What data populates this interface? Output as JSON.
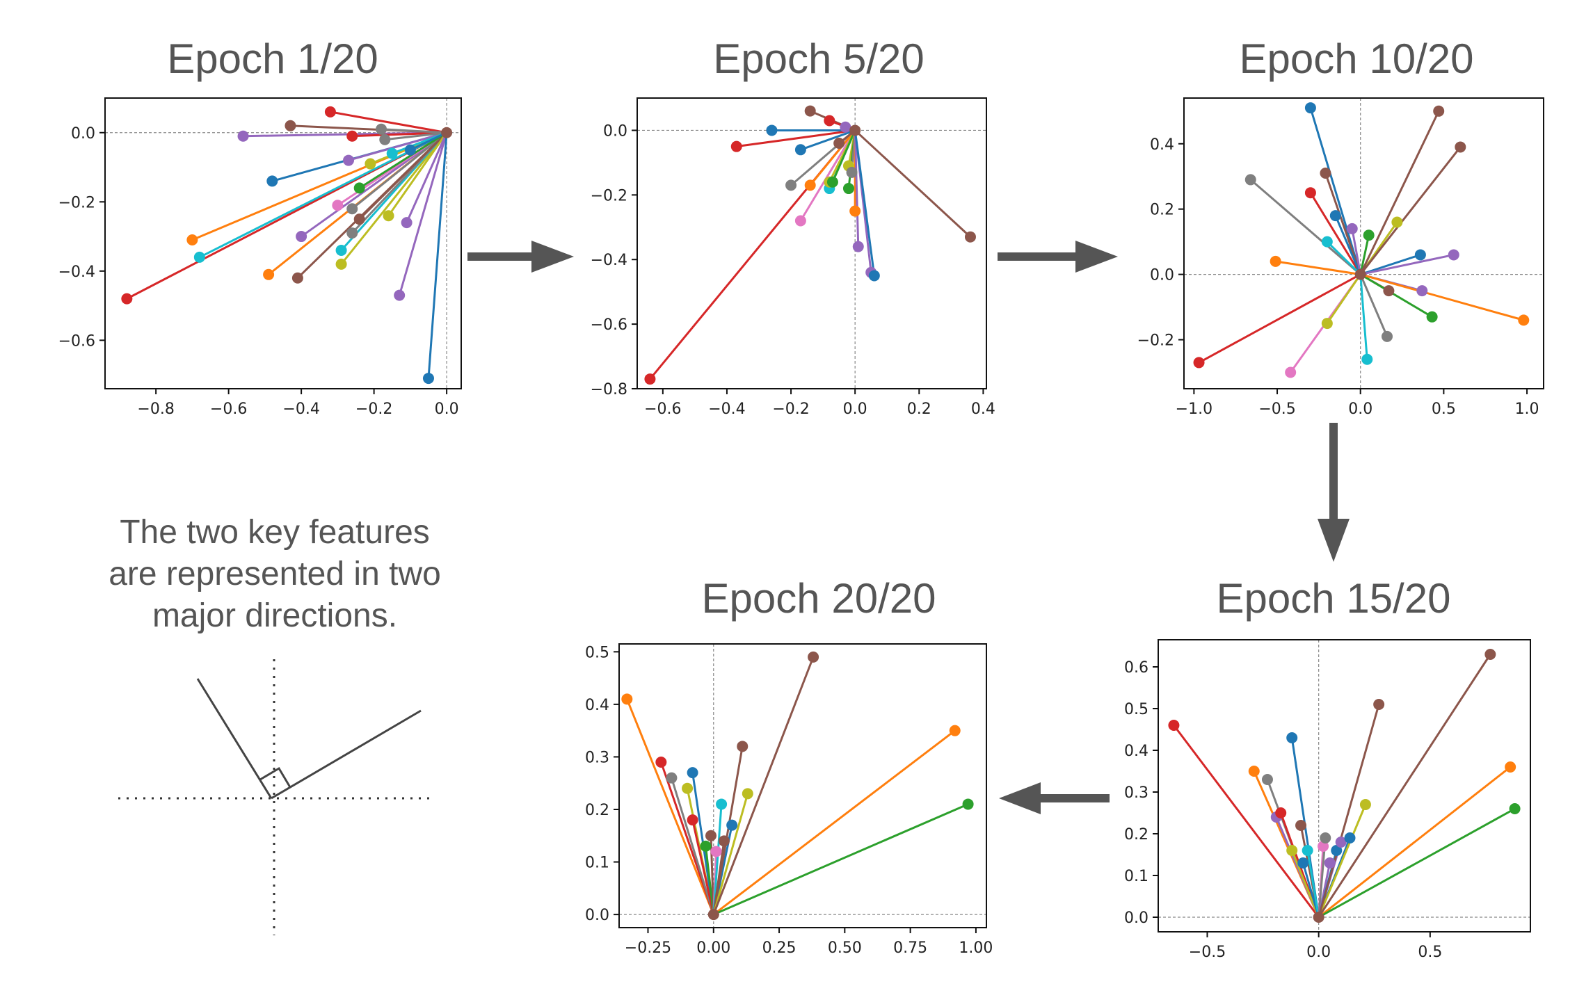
{
  "panels": [
    {
      "title": "Epoch 1/20"
    },
    {
      "title": "Epoch 5/20"
    },
    {
      "title": "Epoch 10/20"
    },
    {
      "title": "Epoch 15/20"
    },
    {
      "title": "Epoch 20/20"
    }
  ],
  "caption": {
    "line1": "The two key features",
    "line2": "are represented in two",
    "line3": "major directions."
  },
  "palette": [
    "#1f77b4",
    "#ff7f0e",
    "#2ca02c",
    "#d62728",
    "#9467bd",
    "#8c564b",
    "#e377c2",
    "#7f7f7f",
    "#bcbd22",
    "#17becf"
  ],
  "arrow_color": "#555555",
  "chart_data": [
    {
      "type": "scatter",
      "title": "Epoch 1/20",
      "xlim": [
        -0.94,
        0.04
      ],
      "ylim": [
        -0.74,
        0.1
      ],
      "xticks": [
        "-0.8",
        "-0.6",
        "-0.4",
        "-0.2",
        "0.0"
      ],
      "xtick_values": [
        -0.8,
        -0.6,
        -0.4,
        -0.2,
        0.0
      ],
      "yticks": [
        "0.0",
        "-0.2",
        "-0.4",
        "-0.6"
      ],
      "ytick_values": [
        0.0,
        -0.2,
        -0.4,
        -0.6
      ],
      "origin": [
        0,
        0
      ],
      "points": [
        {
          "x": -0.88,
          "y": -0.48,
          "c": 3
        },
        {
          "x": -0.7,
          "y": -0.31,
          "c": 1
        },
        {
          "x": -0.68,
          "y": -0.36,
          "c": 9
        },
        {
          "x": -0.56,
          "y": -0.01,
          "c": 4
        },
        {
          "x": -0.49,
          "y": -0.41,
          "c": 1
        },
        {
          "x": -0.48,
          "y": -0.14,
          "c": 0
        },
        {
          "x": -0.43,
          "y": 0.02,
          "c": 5
        },
        {
          "x": -0.41,
          "y": -0.42,
          "c": 5
        },
        {
          "x": -0.4,
          "y": -0.3,
          "c": 4
        },
        {
          "x": -0.32,
          "y": 0.06,
          "c": 3
        },
        {
          "x": -0.3,
          "y": -0.21,
          "c": 6
        },
        {
          "x": -0.29,
          "y": -0.38,
          "c": 8
        },
        {
          "x": -0.29,
          "y": -0.34,
          "c": 9
        },
        {
          "x": -0.27,
          "y": -0.08,
          "c": 4
        },
        {
          "x": -0.26,
          "y": -0.29,
          "c": 7
        },
        {
          "x": -0.26,
          "y": -0.22,
          "c": 7
        },
        {
          "x": -0.26,
          "y": -0.01,
          "c": 3
        },
        {
          "x": -0.24,
          "y": -0.25,
          "c": 5
        },
        {
          "x": -0.24,
          "y": -0.16,
          "c": 2
        },
        {
          "x": -0.21,
          "y": -0.09,
          "c": 8
        },
        {
          "x": -0.18,
          "y": 0.01,
          "c": 7
        },
        {
          "x": -0.17,
          "y": -0.02,
          "c": 7
        },
        {
          "x": -0.16,
          "y": -0.24,
          "c": 8
        },
        {
          "x": -0.13,
          "y": -0.47,
          "c": 4
        },
        {
          "x": -0.11,
          "y": -0.26,
          "c": 4
        },
        {
          "x": -0.05,
          "y": -0.71,
          "c": 0
        },
        {
          "x": -0.15,
          "y": -0.06,
          "c": 9
        },
        {
          "x": -0.1,
          "y": -0.05,
          "c": 0
        }
      ]
    },
    {
      "type": "scatter",
      "title": "Epoch 5/20",
      "xlim": [
        -0.68,
        0.41
      ],
      "ylim": [
        -0.8,
        0.1
      ],
      "xticks": [
        "-0.6",
        "-0.4",
        "-0.2",
        "0.0",
        "0.2",
        "0.4"
      ],
      "xtick_values": [
        -0.6,
        -0.4,
        -0.2,
        0.0,
        0.2,
        0.4
      ],
      "yticks": [
        "0.0",
        "-0.2",
        "-0.4",
        "-0.6",
        "-0.8"
      ],
      "ytick_values": [
        0.0,
        -0.2,
        -0.4,
        -0.6,
        -0.8
      ],
      "origin": [
        0,
        0
      ],
      "points": [
        {
          "x": -0.64,
          "y": -0.77,
          "c": 3
        },
        {
          "x": -0.37,
          "y": -0.05,
          "c": 3
        },
        {
          "x": -0.26,
          "y": 0.0,
          "c": 0
        },
        {
          "x": -0.2,
          "y": -0.17,
          "c": 7
        },
        {
          "x": -0.17,
          "y": -0.28,
          "c": 6
        },
        {
          "x": -0.17,
          "y": -0.06,
          "c": 0
        },
        {
          "x": -0.14,
          "y": 0.06,
          "c": 5
        },
        {
          "x": -0.14,
          "y": -0.17,
          "c": 1
        },
        {
          "x": -0.08,
          "y": -0.18,
          "c": 9
        },
        {
          "x": -0.08,
          "y": 0.03,
          "c": 3
        },
        {
          "x": -0.08,
          "y": -0.16,
          "c": 8
        },
        {
          "x": -0.07,
          "y": -0.16,
          "c": 2
        },
        {
          "x": -0.05,
          "y": -0.04,
          "c": 5
        },
        {
          "x": -0.03,
          "y": 0.01,
          "c": 4
        },
        {
          "x": -0.02,
          "y": -0.11,
          "c": 8
        },
        {
          "x": -0.02,
          "y": -0.18,
          "c": 2
        },
        {
          "x": -0.01,
          "y": -0.13,
          "c": 7
        },
        {
          "x": 0.0,
          "y": -0.25,
          "c": 1
        },
        {
          "x": 0.01,
          "y": -0.36,
          "c": 4
        },
        {
          "x": 0.05,
          "y": -0.44,
          "c": 4
        },
        {
          "x": 0.06,
          "y": -0.45,
          "c": 0
        },
        {
          "x": 0.36,
          "y": -0.33,
          "c": 5
        }
      ]
    },
    {
      "type": "scatter",
      "title": "Epoch 10/20",
      "xlim": [
        -1.06,
        1.1
      ],
      "ylim": [
        -0.35,
        0.54
      ],
      "xticks": [
        "-1.0",
        "-0.5",
        "0.0",
        "0.5",
        "1.0"
      ],
      "xtick_values": [
        -1.0,
        -0.5,
        0.0,
        0.5,
        1.0
      ],
      "yticks": [
        "0.4",
        "0.2",
        "0.0",
        "-0.2"
      ],
      "ytick_values": [
        0.4,
        0.2,
        0.0,
        -0.2
      ],
      "origin": [
        0,
        0
      ],
      "points": [
        {
          "x": -0.97,
          "y": -0.27,
          "c": 3
        },
        {
          "x": -0.66,
          "y": 0.29,
          "c": 7
        },
        {
          "x": -0.51,
          "y": 0.04,
          "c": 1
        },
        {
          "x": -0.42,
          "y": -0.3,
          "c": 6
        },
        {
          "x": -0.3,
          "y": 0.51,
          "c": 0
        },
        {
          "x": -0.3,
          "y": 0.25,
          "c": 3
        },
        {
          "x": -0.21,
          "y": 0.31,
          "c": 5
        },
        {
          "x": -0.2,
          "y": -0.15,
          "c": 8
        },
        {
          "x": -0.2,
          "y": 0.1,
          "c": 9
        },
        {
          "x": -0.15,
          "y": 0.18,
          "c": 0
        },
        {
          "x": -0.05,
          "y": 0.14,
          "c": 4
        },
        {
          "x": 0.04,
          "y": -0.26,
          "c": 9
        },
        {
          "x": 0.05,
          "y": 0.12,
          "c": 2
        },
        {
          "x": 0.16,
          "y": -0.19,
          "c": 7
        },
        {
          "x": 0.17,
          "y": -0.05,
          "c": 5
        },
        {
          "x": 0.22,
          "y": 0.16,
          "c": 8
        },
        {
          "x": 0.36,
          "y": 0.06,
          "c": 0
        },
        {
          "x": 0.37,
          "y": -0.05,
          "c": 4
        },
        {
          "x": 0.43,
          "y": -0.13,
          "c": 2
        },
        {
          "x": 0.47,
          "y": 0.5,
          "c": 5
        },
        {
          "x": 0.56,
          "y": 0.06,
          "c": 4
        },
        {
          "x": 0.6,
          "y": 0.39,
          "c": 5
        },
        {
          "x": 0.98,
          "y": -0.14,
          "c": 1
        }
      ]
    },
    {
      "type": "scatter",
      "title": "Epoch 15/20",
      "xlim": [
        -0.72,
        0.95
      ],
      "ylim": [
        -0.035,
        0.665
      ],
      "xticks": [
        "-0.5",
        "0.0",
        "0.5"
      ],
      "xtick_values": [
        -0.5,
        0.0,
        0.5
      ],
      "yticks": [
        "0.6",
        "0.5",
        "0.4",
        "0.3",
        "0.2",
        "0.1",
        "0.0"
      ],
      "ytick_values": [
        0.6,
        0.5,
        0.4,
        0.3,
        0.2,
        0.1,
        0.0
      ],
      "origin": [
        0,
        0
      ],
      "points": [
        {
          "x": -0.65,
          "y": 0.46,
          "c": 3
        },
        {
          "x": -0.29,
          "y": 0.35,
          "c": 1
        },
        {
          "x": -0.23,
          "y": 0.33,
          "c": 7
        },
        {
          "x": -0.19,
          "y": 0.24,
          "c": 4
        },
        {
          "x": -0.17,
          "y": 0.25,
          "c": 3
        },
        {
          "x": -0.12,
          "y": 0.43,
          "c": 0
        },
        {
          "x": -0.12,
          "y": 0.16,
          "c": 8
        },
        {
          "x": -0.08,
          "y": 0.22,
          "c": 5
        },
        {
          "x": -0.07,
          "y": 0.13,
          "c": 0
        },
        {
          "x": -0.05,
          "y": 0.16,
          "c": 9
        },
        {
          "x": 0.02,
          "y": 0.17,
          "c": 6
        },
        {
          "x": 0.03,
          "y": 0.19,
          "c": 7
        },
        {
          "x": 0.05,
          "y": 0.13,
          "c": 4
        },
        {
          "x": 0.08,
          "y": 0.16,
          "c": 0
        },
        {
          "x": 0.1,
          "y": 0.18,
          "c": 4
        },
        {
          "x": 0.14,
          "y": 0.19,
          "c": 0
        },
        {
          "x": 0.21,
          "y": 0.27,
          "c": 8
        },
        {
          "x": 0.27,
          "y": 0.51,
          "c": 5
        },
        {
          "x": 0.77,
          "y": 0.63,
          "c": 5
        },
        {
          "x": 0.86,
          "y": 0.36,
          "c": 1
        },
        {
          "x": 0.88,
          "y": 0.26,
          "c": 2
        }
      ]
    },
    {
      "type": "scatter",
      "title": "Epoch 20/20",
      "xlim": [
        -0.36,
        1.04
      ],
      "ylim": [
        -0.025,
        0.515
      ],
      "xticks": [
        "-0.25",
        "0.00",
        "0.25",
        "0.50",
        "0.75",
        "1.00"
      ],
      "xtick_values": [
        -0.25,
        0.0,
        0.25,
        0.5,
        0.75,
        1.0
      ],
      "yticks": [
        "0.5",
        "0.4",
        "0.3",
        "0.2",
        "0.1",
        "0.0"
      ],
      "ytick_values": [
        0.5,
        0.4,
        0.3,
        0.2,
        0.1,
        0.0
      ],
      "origin": [
        0,
        0
      ],
      "points": [
        {
          "x": -0.33,
          "y": 0.41,
          "c": 1
        },
        {
          "x": -0.2,
          "y": 0.29,
          "c": 3
        },
        {
          "x": -0.16,
          "y": 0.26,
          "c": 7
        },
        {
          "x": -0.1,
          "y": 0.24,
          "c": 8
        },
        {
          "x": -0.08,
          "y": 0.27,
          "c": 0
        },
        {
          "x": -0.08,
          "y": 0.18,
          "c": 3
        },
        {
          "x": -0.03,
          "y": 0.13,
          "c": 2
        },
        {
          "x": -0.01,
          "y": 0.15,
          "c": 5
        },
        {
          "x": 0.01,
          "y": 0.12,
          "c": 6
        },
        {
          "x": 0.03,
          "y": 0.21,
          "c": 9
        },
        {
          "x": 0.04,
          "y": 0.14,
          "c": 5
        },
        {
          "x": 0.07,
          "y": 0.17,
          "c": 0
        },
        {
          "x": 0.11,
          "y": 0.32,
          "c": 5
        },
        {
          "x": 0.13,
          "y": 0.23,
          "c": 8
        },
        {
          "x": 0.38,
          "y": 0.49,
          "c": 5
        },
        {
          "x": 0.92,
          "y": 0.35,
          "c": 1
        },
        {
          "x": 0.97,
          "y": 0.21,
          "c": 2
        }
      ]
    }
  ]
}
